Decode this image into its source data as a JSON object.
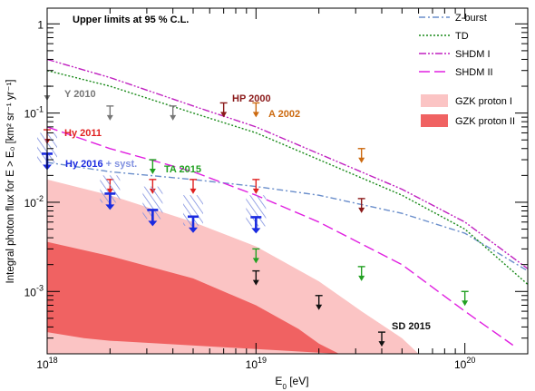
{
  "chart_data": {
    "type": "line",
    "xscale": "log",
    "yscale": "log",
    "xlim": [
      1e+18,
      2e+20
    ],
    "ylim": [
      0.0002,
      1.5
    ],
    "xlabel": "E₀ [eV]",
    "ylabel": "Integral photon flux for E > E₀ [km² sr⁻¹ yr⁻¹]",
    "x_ticks": [
      {
        "v": 1e+18,
        "base": "10",
        "exp": "18"
      },
      {
        "v": 1e+19,
        "base": "10",
        "exp": "19"
      },
      {
        "v": 1e+20,
        "base": "10",
        "exp": "20"
      }
    ],
    "y_ticks": [
      {
        "v": 0.001,
        "base": "10",
        "exp": "-3"
      },
      {
        "v": 0.01,
        "base": "10",
        "exp": "-2"
      },
      {
        "v": 0.1,
        "base": "10",
        "exp": "-1"
      },
      {
        "v": 1,
        "base": "1",
        "exp": ""
      }
    ],
    "header_note": "Upper limits at 95 % C.L.",
    "bands": [
      {
        "name": "GZK proton I",
        "color": "#fbc4c4",
        "upper": [
          [
            1e+18,
            0.018
          ],
          [
            2e+18,
            0.012
          ],
          [
            5e+18,
            0.006
          ],
          [
            1e+19,
            0.0032
          ],
          [
            2e+19,
            0.0013
          ],
          [
            3.2e+19,
            0.0006
          ],
          [
            5e+19,
            0.0003
          ],
          [
            6e+19,
            0.0002
          ]
        ],
        "lower": [
          [
            1e+18,
            8e-05
          ],
          [
            6e+19,
            8e-05
          ]
        ]
      },
      {
        "name": "GZK proton II",
        "color": "#f06262",
        "upper": [
          [
            1e+18,
            0.0036
          ],
          [
            2e+18,
            0.0025
          ],
          [
            5e+18,
            0.0014
          ],
          [
            1e+19,
            0.0007
          ],
          [
            1.6e+19,
            0.00038
          ],
          [
            2e+19,
            0.00026
          ],
          [
            2.5e+19,
            0.0002
          ]
        ],
        "lower": [
          [
            1e+18,
            0.00035
          ],
          [
            1.5e+18,
            0.0003
          ],
          [
            2e+18,
            0.00028
          ],
          [
            2.5e+19,
            0.0002
          ]
        ]
      }
    ],
    "series": [
      {
        "name": "Z-burst",
        "color": "#6a8ecb",
        "dash": "7,3,2,3",
        "points": [
          [
            1e+18,
            0.028
          ],
          [
            2e+18,
            0.022
          ],
          [
            5e+18,
            0.018
          ],
          [
            1e+19,
            0.015
          ],
          [
            2e+19,
            0.012
          ],
          [
            5e+19,
            0.0075
          ],
          [
            1e+20,
            0.0045
          ],
          [
            2e+20,
            0.0017
          ]
        ]
      },
      {
        "name": "TD",
        "color": "#1a8a1a",
        "dash": "2,2",
        "points": [
          [
            1e+18,
            0.3
          ],
          [
            2e+18,
            0.2
          ],
          [
            5e+18,
            0.1
          ],
          [
            1e+19,
            0.06
          ],
          [
            2e+19,
            0.03
          ],
          [
            5e+19,
            0.012
          ],
          [
            1e+20,
            0.005
          ],
          [
            2e+20,
            0.0012
          ]
        ]
      },
      {
        "name": "SHDM I",
        "color": "#c020c0",
        "dash": "8,2,2,2,2,2",
        "points": [
          [
            1e+18,
            0.4
          ],
          [
            2e+18,
            0.25
          ],
          [
            5e+18,
            0.12
          ],
          [
            1e+19,
            0.07
          ],
          [
            2e+19,
            0.035
          ],
          [
            5e+19,
            0.014
          ],
          [
            1e+20,
            0.006
          ],
          [
            2e+20,
            0.0018
          ]
        ]
      },
      {
        "name": "SHDM II",
        "color": "#e020e0",
        "dash": "12,5",
        "points": [
          [
            1e+18,
            0.07
          ],
          [
            2e+18,
            0.04
          ],
          [
            5e+18,
            0.022
          ],
          [
            1e+19,
            0.012
          ],
          [
            2e+19,
            0.006
          ],
          [
            5e+19,
            0.002
          ],
          [
            1e+20,
            0.0006
          ],
          [
            1.7e+20,
            0.00025
          ]
        ]
      }
    ],
    "limits": [
      {
        "label": "Y 2010",
        "color": "#777777",
        "points": [
          [
            1e+18,
            0.2
          ],
          [
            2e+18,
            0.12
          ],
          [
            4e+18,
            0.12
          ]
        ]
      },
      {
        "label": "HP 2000",
        "color": "#8b1a1a",
        "points": [
          [
            7e+18,
            0.13
          ],
          [
            3.2e+19,
            0.011
          ]
        ]
      },
      {
        "label": "A 2002",
        "color": "#cc6a10",
        "points": [
          [
            1e+19,
            0.13
          ],
          [
            3.2e+19,
            0.04
          ]
        ]
      },
      {
        "label": "Hy 2011",
        "color": "#e02020",
        "points": [
          [
            1e+18,
            0.065
          ],
          [
            2e+18,
            0.018
          ],
          [
            3.2e+18,
            0.018
          ],
          [
            5e+18,
            0.018
          ],
          [
            1e+19,
            0.018
          ]
        ]
      },
      {
        "label": "TA 2015",
        "color": "#22a022",
        "points": [
          [
            3.2e+18,
            0.03
          ],
          [
            1e+19,
            0.003
          ],
          [
            3.2e+19,
            0.0019
          ],
          [
            1e+20,
            0.001
          ]
        ]
      },
      {
        "label": "SD 2015",
        "color": "#111111",
        "points": [
          [
            1e+19,
            0.0017
          ],
          [
            2e+19,
            0.0009
          ],
          [
            4e+19,
            0.00035
          ]
        ]
      },
      {
        "label": "Hy 2016 + syst.",
        "color": "#1a2ae0",
        "syst_color": "#8090e0",
        "points": [
          [
            1e+18,
            0.035
          ],
          [
            2e+18,
            0.0125
          ],
          [
            3.2e+18,
            0.0082
          ],
          [
            5e+18,
            0.0069
          ],
          [
            1e+19,
            0.0068
          ]
        ],
        "syst_top": [
          0.06,
          0.02,
          0.015,
          0.012,
          0.012
        ]
      }
    ],
    "legend": {
      "placement": "top-right",
      "lines": [
        "Z-burst",
        "TD",
        "SHDM I",
        "SHDM II"
      ],
      "fills": [
        "GZK proton I",
        "GZK proton II"
      ]
    },
    "grid": false
  }
}
